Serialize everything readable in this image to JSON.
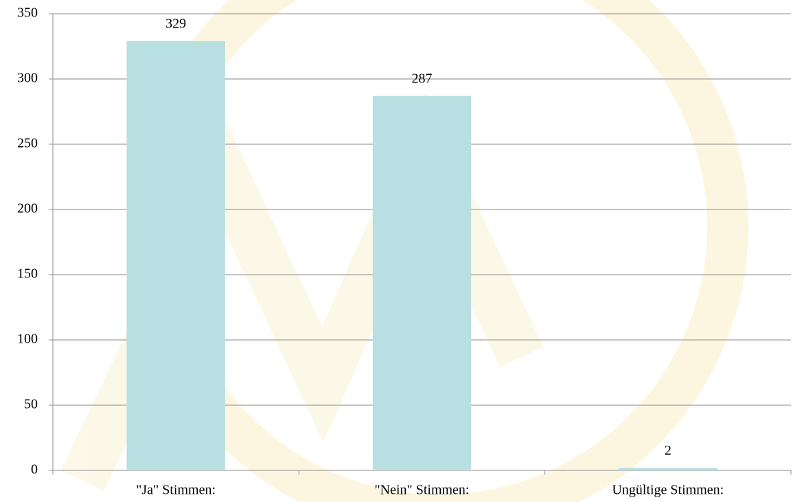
{
  "chart_data": {
    "type": "bar",
    "categories": [
      "\"Ja\" Stimmen:",
      "\"Nein\" Stimmen:",
      "Ungültige Stimmen:"
    ],
    "values": [
      329,
      287,
      2
    ],
    "color": "#b8dfe1",
    "ylim": [
      0,
      350
    ],
    "yticks": [
      0,
      50,
      100,
      150,
      200,
      250,
      300,
      350
    ],
    "grid": true,
    "data_labels": true
  }
}
